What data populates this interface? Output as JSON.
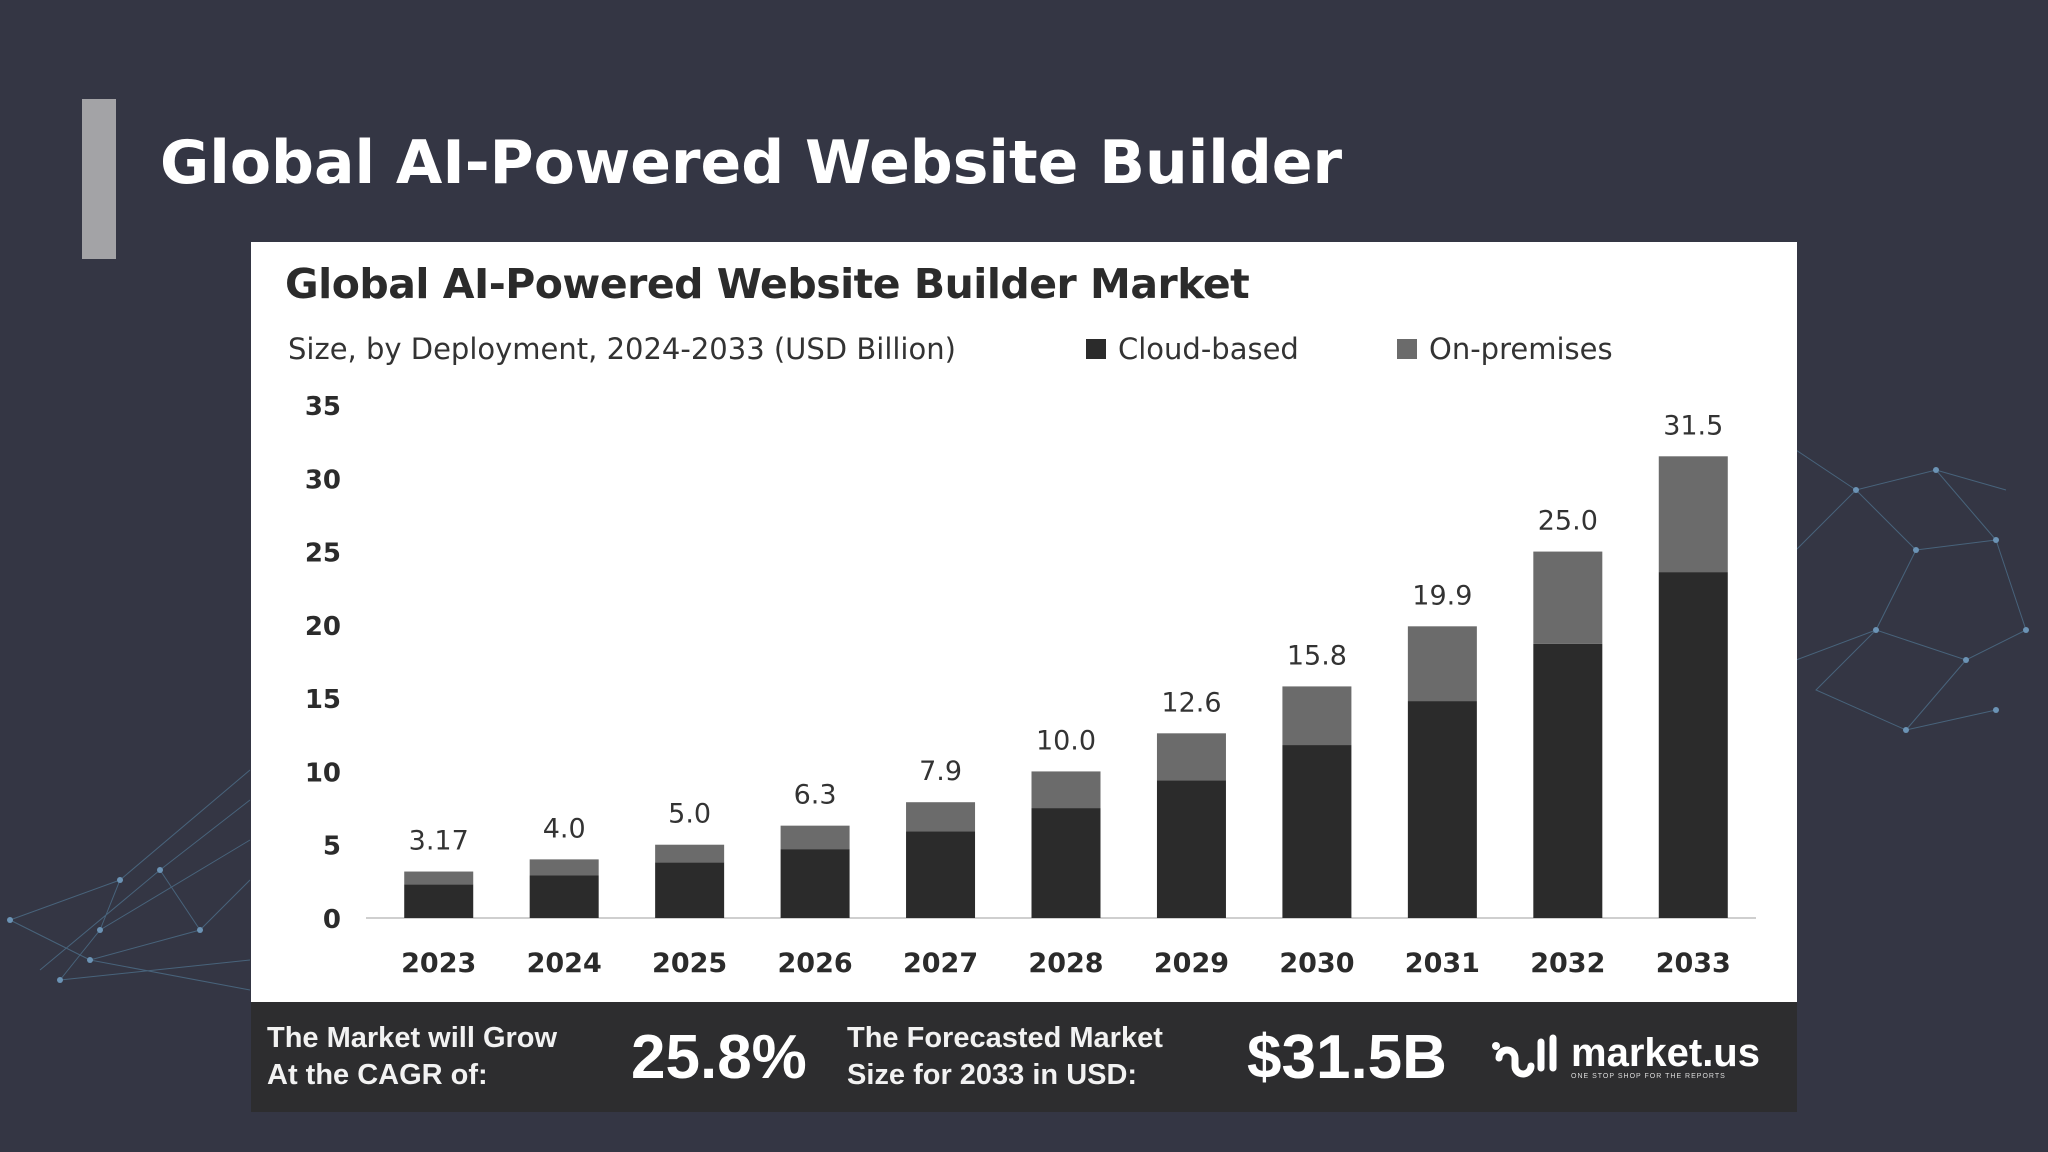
{
  "slide": {
    "title": "Global AI-Powered Website Builder"
  },
  "chart": {
    "title": "Global AI-Powered Website Builder Market",
    "subtitle": "Size, by Deployment, 2024-2033 (USD Billion)"
  },
  "banner": {
    "cagr_text_line1": "The Market will Grow",
    "cagr_text_line2": "At the CAGR of:",
    "cagr_value": "25.8%",
    "forecast_text_line1": "The Forecasted Market",
    "forecast_text_line2": "Size for 2033 in USD:",
    "forecast_value": "$31.5B",
    "brand_name": "market.us",
    "brand_tagline": "ONE STOP SHOP FOR THE REPORTS"
  },
  "colors": {
    "background": "#343644",
    "accent_bar": "#a3a3a6",
    "cloud_based": "#2b2b2b",
    "on_premises": "#6b6b6b",
    "banner": "#2d2d2f"
  },
  "icons": [
    "market-us-logo-icon",
    "network-decoration"
  ],
  "chart_data": {
    "type": "bar",
    "stacked": true,
    "title": "Global AI-Powered Website Builder Market",
    "subtitle": "Size, by Deployment, 2024-2033 (USD Billion)",
    "xlabel": "",
    "ylabel": "",
    "ylim": [
      0,
      35
    ],
    "yticks": [
      0,
      5,
      10,
      15,
      20,
      25,
      30,
      35
    ],
    "grid": false,
    "legend_position": "top-right",
    "categories": [
      "2023",
      "2024",
      "2025",
      "2026",
      "2027",
      "2028",
      "2029",
      "2030",
      "2031",
      "2032",
      "2033"
    ],
    "series": [
      {
        "name": "Cloud-based",
        "values": [
          2.3,
          2.9,
          3.8,
          4.7,
          5.9,
          7.5,
          9.4,
          11.8,
          14.8,
          18.7,
          23.6
        ]
      },
      {
        "name": "On-premises",
        "values": [
          0.87,
          1.1,
          1.2,
          1.6,
          2.0,
          2.5,
          3.2,
          4.0,
          5.1,
          6.3,
          7.9
        ]
      }
    ],
    "totals": [
      3.17,
      4.0,
      5.0,
      6.3,
      7.9,
      10.0,
      12.6,
      15.8,
      19.9,
      25.0,
      31.5
    ],
    "total_labels": [
      "3.17",
      "4.0",
      "5.0",
      "6.3",
      "7.9",
      "10.0",
      "12.6",
      "15.8",
      "19.9",
      "25.0",
      "31.5"
    ]
  }
}
